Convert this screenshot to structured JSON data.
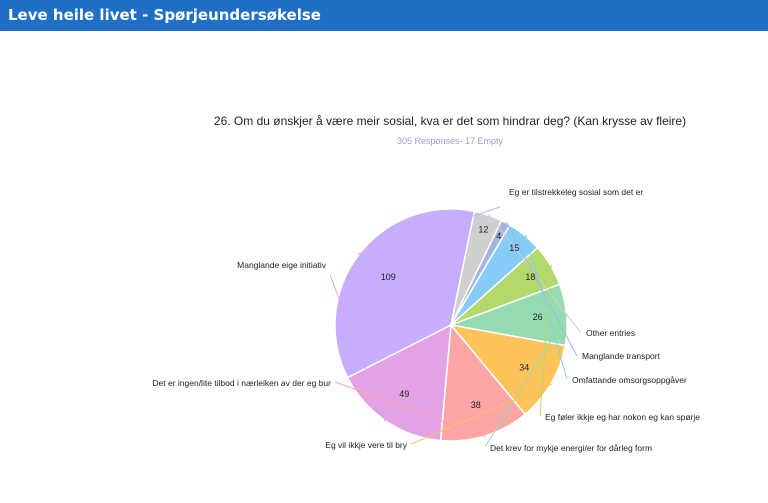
{
  "header": {
    "title": "Leve heile livet - Spørjeundersøkelse"
  },
  "chart_data": {
    "type": "pie",
    "title": "26. Om du ønskjer å være meir sosial, kva er det som hindrar deg? (Kan krysse av fleire)",
    "subtitle": "305 Responses- 17 Empty",
    "slices": [
      {
        "label": "Eg er tilstrekkeleg sosial som det er",
        "value": 109,
        "color": "#c7aefd"
      },
      {
        "label": "Other entries",
        "value": 12,
        "color": "#cfcfcf"
      },
      {
        "label": "Manglande transport",
        "value": 4,
        "color": "#a6b4e4"
      },
      {
        "label": "Omfattande omsorgsoppgåver",
        "value": 15,
        "color": "#85ccf7"
      },
      {
        "label": "Eg føler ikkje eg har nokon eg kan spørje",
        "value": 18,
        "color": "#b3d96b"
      },
      {
        "label": "Det krev for mykje energi/er for dårleg form",
        "value": 26,
        "color": "#94dcb0"
      },
      {
        "label": "Eg vil ikkje vere til bry",
        "value": 34,
        "color": "#fec45b"
      },
      {
        "label": "Det er ingen/lite tilbod i nærleiken av der eg bur",
        "value": 38,
        "color": "#fba5a5"
      },
      {
        "label": "Manglande eige initiativ",
        "value": 49,
        "color": "#e2a2e3"
      }
    ]
  }
}
